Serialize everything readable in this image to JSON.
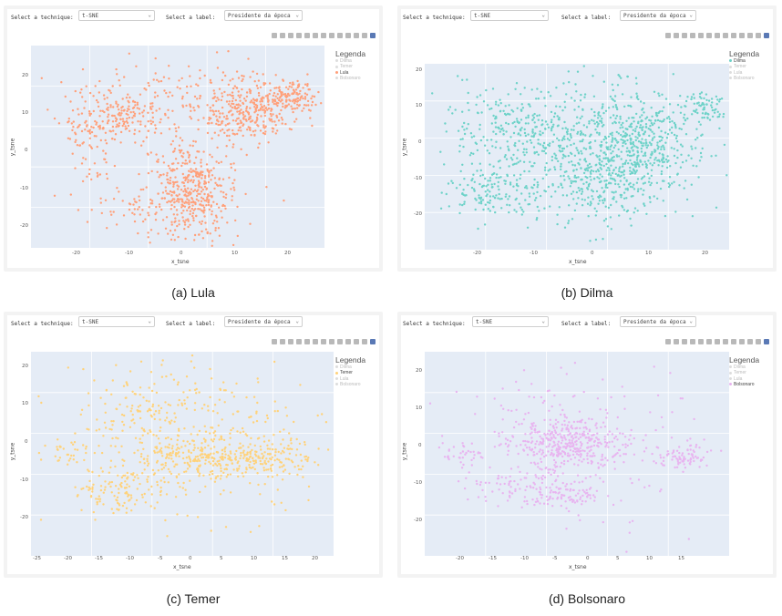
{
  "panels": [
    {
      "id": "lula",
      "technique_label": "Select a technique:",
      "technique_value": "t-SNE",
      "label_label": "Select a label:",
      "label_value": "Presidente da época",
      "legend_title": "Legenda",
      "legend_items": [
        "Dilma",
        "Temer",
        "Lula",
        "Bolsonaro"
      ],
      "active_item": "Lula",
      "color": "#ffa07a",
      "x_title": "x_tsne",
      "y_title": "y_tsne",
      "x_ticks": [
        "-20",
        "-10",
        "0",
        "10",
        "20"
      ],
      "y_ticks": [
        "20",
        "10",
        "0",
        "-10",
        "-20"
      ],
      "caption": "(a) Lula"
    },
    {
      "id": "dilma",
      "technique_label": "Select a technique:",
      "technique_value": "t-SNE",
      "label_label": "Select a label:",
      "label_value": "Presidente da época",
      "legend_title": "Legenda",
      "legend_items": [
        "Dilma",
        "Temer",
        "Lula",
        "Bolsonaro"
      ],
      "active_item": "Dilma",
      "color": "#6dd2c8",
      "x_title": "x_tsne",
      "y_title": "y_tsne",
      "x_ticks": [
        "-20",
        "-10",
        "0",
        "10",
        "20"
      ],
      "y_ticks": [
        "20",
        "10",
        "0",
        "-10",
        "-20"
      ],
      "caption": "(b) Dilma"
    },
    {
      "id": "temer",
      "technique_label": "Select a technique:",
      "technique_value": "t-SNE",
      "label_label": "Select a label:",
      "label_value": "Presidente da época",
      "legend_title": "Legenda",
      "legend_items": [
        "Dilma",
        "Temer",
        "Lula",
        "Bolsonaro"
      ],
      "active_item": "Temer",
      "color": "#ffd27a",
      "x_title": "x_tsne",
      "y_title": "y_tsne",
      "x_ticks": [
        "-25",
        "-20",
        "-15",
        "-10",
        "-5",
        "0",
        "5",
        "10",
        "15",
        "20"
      ],
      "y_ticks": [
        "20",
        "10",
        "0",
        "-10",
        "-20"
      ],
      "caption": "(c) Temer"
    },
    {
      "id": "bolsonaro",
      "technique_label": "Select a technique:",
      "technique_value": "t-SNE",
      "label_label": "Select a label:",
      "label_value": "Presidente da época",
      "legend_title": "Legenda",
      "legend_items": [
        "Dilma",
        "Temer",
        "Lula",
        "Bolsonaro"
      ],
      "active_item": "Bolsonaro",
      "color": "#e8b4f0",
      "x_title": "x_tsne",
      "y_title": "y_tsne",
      "x_ticks": [
        "-20",
        "-15",
        "-10",
        "-5",
        "0",
        "5",
        "10",
        "15"
      ],
      "y_ticks": [
        "20",
        "10",
        "0",
        "-10",
        "-20"
      ],
      "caption": "(d) Bolsonaro"
    }
  ]
}
